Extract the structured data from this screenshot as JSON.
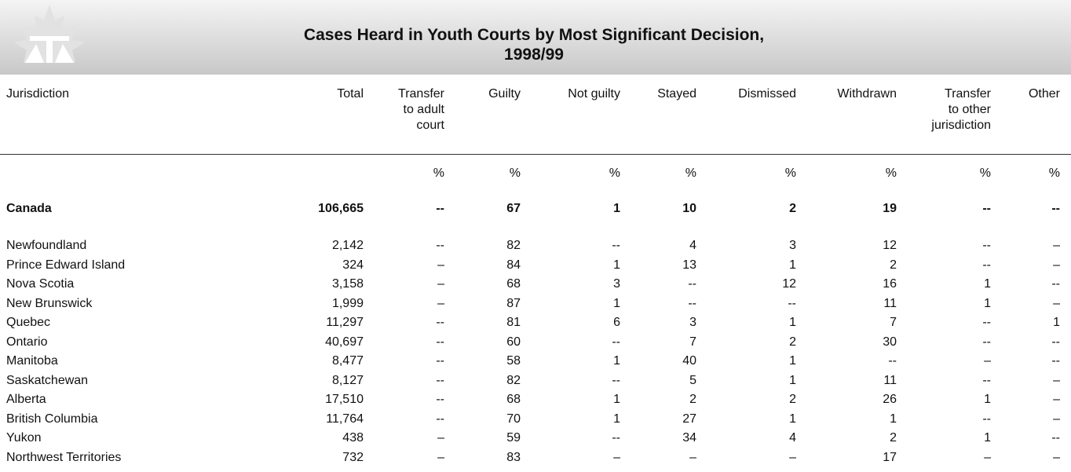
{
  "header": {
    "title": "Cases Heard in Youth Courts by Most Significant Decision,\n1998/99"
  },
  "table": {
    "columns": [
      "Jurisdiction",
      "Total",
      "Transfer\nto adult\ncourt",
      "Guilty",
      "Not guilty",
      "Stayed",
      "Dismissed",
      "Withdrawn",
      "Transfer\nto other\njurisdiction",
      "Other"
    ],
    "units": [
      "%",
      "%",
      "%",
      "%",
      "%",
      "%",
      "%",
      "%"
    ],
    "summary": [
      "Canada",
      "106,665",
      "--",
      "67",
      "1",
      "10",
      "2",
      "19",
      "--",
      "--"
    ],
    "rows": [
      [
        "Newfoundland",
        "2,142",
        "--",
        "82",
        "--",
        "4",
        "3",
        "12",
        "--",
        "–"
      ],
      [
        "Prince Edward Island",
        "324",
        "–",
        "84",
        "1",
        "13",
        "1",
        "2",
        "--",
        "–"
      ],
      [
        "Nova Scotia",
        "3,158",
        "–",
        "68",
        "3",
        "--",
        "12",
        "16",
        "1",
        "--"
      ],
      [
        "New Brunswick",
        "1,999",
        "–",
        "87",
        "1",
        "--",
        "--",
        "11",
        "1",
        "–"
      ],
      [
        "Quebec",
        "11,297",
        "--",
        "81",
        "6",
        "3",
        "1",
        "7",
        "--",
        "1"
      ],
      [
        "Ontario",
        "40,697",
        "--",
        "60",
        "--",
        "7",
        "2",
        "30",
        "--",
        "--"
      ],
      [
        "Manitoba",
        "8,477",
        "--",
        "58",
        "1",
        "40",
        "1",
        "--",
        "–",
        "--"
      ],
      [
        "Saskatchewan",
        "8,127",
        "--",
        "82",
        "--",
        "5",
        "1",
        "11",
        "--",
        "–"
      ],
      [
        "Alberta",
        "17,510",
        "--",
        "68",
        "1",
        "2",
        "2",
        "26",
        "1",
        "–"
      ],
      [
        "British Columbia",
        "11,764",
        "--",
        "70",
        "1",
        "27",
        "1",
        "1",
        "--",
        "–"
      ],
      [
        "Yukon",
        "438",
        "–",
        "59",
        "--",
        "34",
        "4",
        "2",
        "1",
        "--"
      ],
      [
        "Northwest Territories",
        "732",
        "–",
        "83",
        "–",
        "–",
        "–",
        "17",
        "–",
        "–"
      ]
    ]
  }
}
